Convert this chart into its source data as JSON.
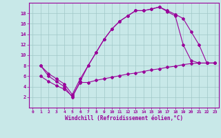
{
  "bg_color": "#c8e8e8",
  "line_color": "#990099",
  "grid_color": "#a0c8c8",
  "xlabel": "Windchill (Refroidissement éolien,°C)",
  "xlabel_color": "#990099",
  "tick_color": "#990099",
  "ylim": [
    0,
    20
  ],
  "xlim": [
    -0.5,
    23.5
  ],
  "yticks": [
    2,
    4,
    6,
    8,
    10,
    12,
    14,
    16,
    18
  ],
  "xticks": [
    0,
    1,
    2,
    3,
    4,
    5,
    6,
    7,
    8,
    9,
    10,
    11,
    12,
    13,
    14,
    15,
    16,
    17,
    18,
    19,
    20,
    21,
    22,
    23
  ],
  "line1_x": [
    1,
    2,
    3,
    4,
    5,
    6,
    7,
    8,
    9,
    10,
    11,
    12,
    13,
    14,
    15,
    16,
    17,
    18,
    19,
    20,
    21,
    22,
    23
  ],
  "line1_y": [
    8,
    6,
    5,
    4,
    2,
    5,
    8,
    10.5,
    13,
    15,
    16.5,
    17.5,
    18.5,
    18.5,
    18.8,
    19.2,
    18.5,
    17.8,
    17,
    14.5,
    12,
    8.5,
    8.5
  ],
  "line2_x": [
    1,
    2,
    3,
    4,
    5,
    6,
    7,
    8,
    9,
    10,
    11,
    12,
    13,
    14,
    15,
    16,
    17,
    18,
    19,
    20,
    21,
    22,
    23
  ],
  "line2_y": [
    6,
    5,
    4.2,
    3.5,
    2.2,
    4.8,
    4.8,
    5.2,
    5.5,
    5.8,
    6.1,
    6.4,
    6.6,
    6.9,
    7.2,
    7.4,
    7.7,
    7.9,
    8.2,
    8.4,
    8.5,
    8.5,
    8.5
  ],
  "line3_x": [
    1,
    2,
    3,
    4,
    5,
    6,
    7,
    8,
    9,
    10,
    11,
    12,
    13,
    14,
    15,
    16,
    17,
    18,
    19,
    20,
    21,
    22,
    23
  ],
  "line3_y": [
    8,
    6.5,
    5.5,
    4.5,
    2.5,
    5.5,
    8.0,
    10.5,
    13,
    15,
    16.5,
    17.5,
    18.5,
    18.5,
    18.8,
    19.2,
    18.3,
    17.5,
    12,
    9,
    8.5,
    8.5,
    8.5
  ]
}
